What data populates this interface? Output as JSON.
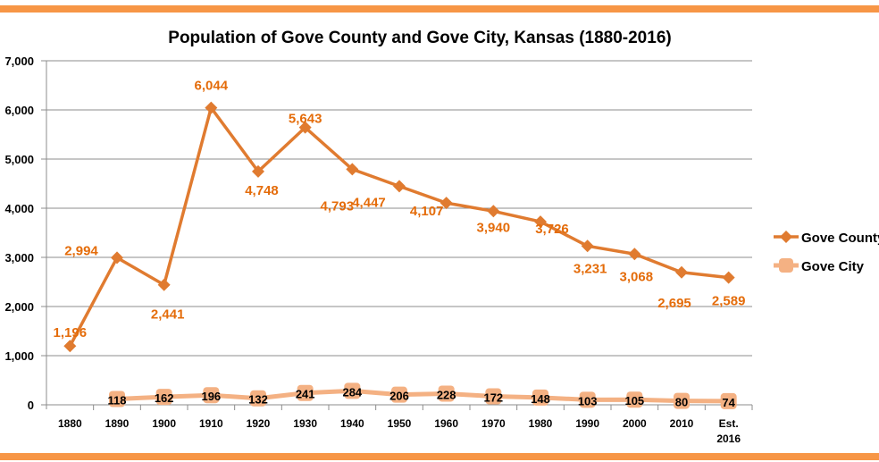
{
  "chart_data": {
    "type": "line",
    "title": "Population of Gove County and Gove City, Kansas (1880-2016)",
    "categories": [
      "1880",
      "1890",
      "1900",
      "1910",
      "1920",
      "1930",
      "1940",
      "1950",
      "1960",
      "1970",
      "1980",
      "1990",
      "2000",
      "2010",
      "Est. 2016"
    ],
    "ylim": [
      0,
      7000
    ],
    "yticks": [
      "0",
      "1,000",
      "2,000",
      "3,000",
      "4,000",
      "5,000",
      "6,000",
      "7,000"
    ],
    "grid": true,
    "legend": "right",
    "series": [
      {
        "name": "Gove County",
        "color": "#e07b30",
        "label_color": "#e46c0a",
        "marker": "diamond",
        "values": [
          1196,
          2994,
          2441,
          6044,
          4748,
          5643,
          4793,
          4447,
          4107,
          3940,
          3726,
          3231,
          3068,
          2695,
          2589
        ],
        "labels": [
          "1,196",
          "2,994",
          "2,441",
          "6,044",
          "4,748",
          "5,643",
          "4,793",
          "4,447",
          "4,107",
          "3,940",
          "3,726",
          "3,231",
          "3,068",
          "2,695",
          "2,589"
        ]
      },
      {
        "name": "Gove City",
        "color": "#f4b183",
        "label_color": "#000000",
        "marker": "square",
        "values": [
          null,
          118,
          162,
          196,
          132,
          241,
          284,
          206,
          228,
          172,
          148,
          103,
          105,
          80,
          74
        ],
        "labels": [
          null,
          "118",
          "162",
          "196",
          "132",
          "241",
          "284",
          "206",
          "228",
          "172",
          "148",
          "103",
          "105",
          "80",
          "74"
        ]
      }
    ]
  }
}
